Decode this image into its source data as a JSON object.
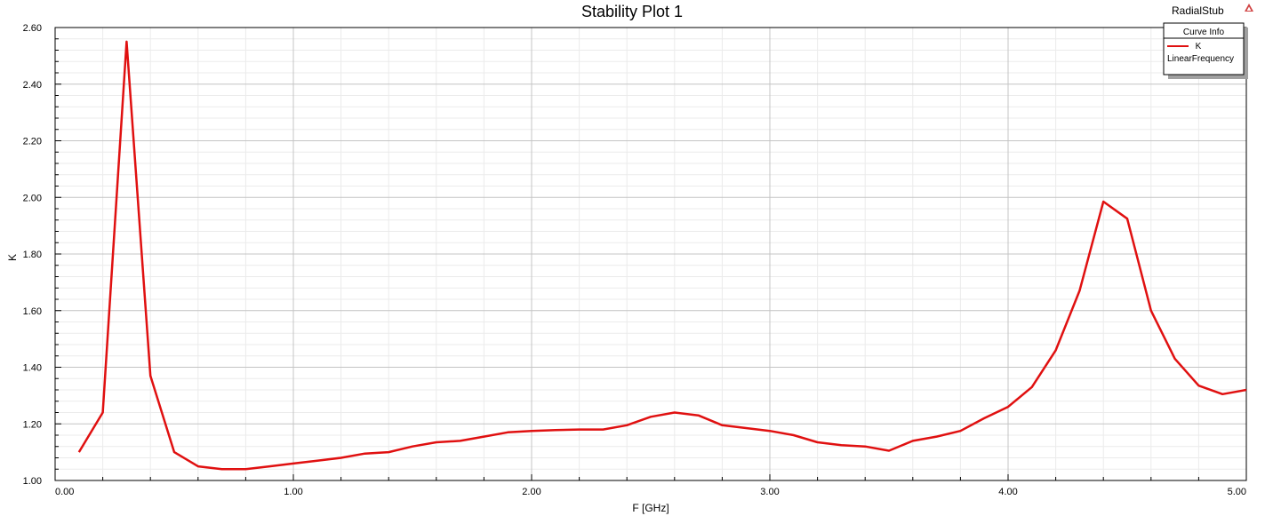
{
  "chart_data": {
    "type": "line",
    "title": "Stability Plot 1",
    "xlabel": "F [GHz]",
    "ylabel": "K",
    "xlim": [
      0,
      5
    ],
    "ylim": [
      1.0,
      2.6
    ],
    "grid": true,
    "x_ticks": [
      "0.00",
      "1.00",
      "2.00",
      "3.00",
      "4.00",
      "5.00"
    ],
    "y_ticks": [
      "1.00",
      "1.20",
      "1.40",
      "1.60",
      "1.80",
      "2.00",
      "2.20",
      "2.40",
      "2.60"
    ],
    "legend": {
      "title": "Curve Info",
      "position": "top-right",
      "entries": [
        {
          "label": "K",
          "sublabel": "LinearFrequency"
        }
      ]
    },
    "series": [
      {
        "name": "K",
        "color": "#e01010",
        "x": [
          0.1,
          0.2,
          0.3,
          0.4,
          0.5,
          0.6,
          0.7,
          0.8,
          0.9,
          1.0,
          1.1,
          1.2,
          1.3,
          1.4,
          1.5,
          1.6,
          1.7,
          1.8,
          1.9,
          2.0,
          2.1,
          2.2,
          2.3,
          2.4,
          2.5,
          2.6,
          2.7,
          2.8,
          2.9,
          3.0,
          3.1,
          3.2,
          3.3,
          3.4,
          3.5,
          3.6,
          3.7,
          3.8,
          3.9,
          4.0,
          4.1,
          4.2,
          4.3,
          4.4,
          4.5,
          4.6,
          4.7,
          4.8,
          4.9,
          5.0
        ],
        "y": [
          1.1,
          1.24,
          2.55,
          1.37,
          1.1,
          1.05,
          1.04,
          1.04,
          1.05,
          1.06,
          1.07,
          1.08,
          1.095,
          1.1,
          1.12,
          1.135,
          1.14,
          1.155,
          1.17,
          1.175,
          1.178,
          1.18,
          1.18,
          1.195,
          1.225,
          1.24,
          1.23,
          1.195,
          1.185,
          1.175,
          1.16,
          1.135,
          1.125,
          1.12,
          1.105,
          1.14,
          1.155,
          1.175,
          1.22,
          1.26,
          1.33,
          1.46,
          1.67,
          1.985,
          1.925,
          1.6,
          1.43,
          1.335,
          1.305,
          1.32
        ]
      }
    ]
  },
  "header": {
    "project_name": "RadialStub"
  }
}
